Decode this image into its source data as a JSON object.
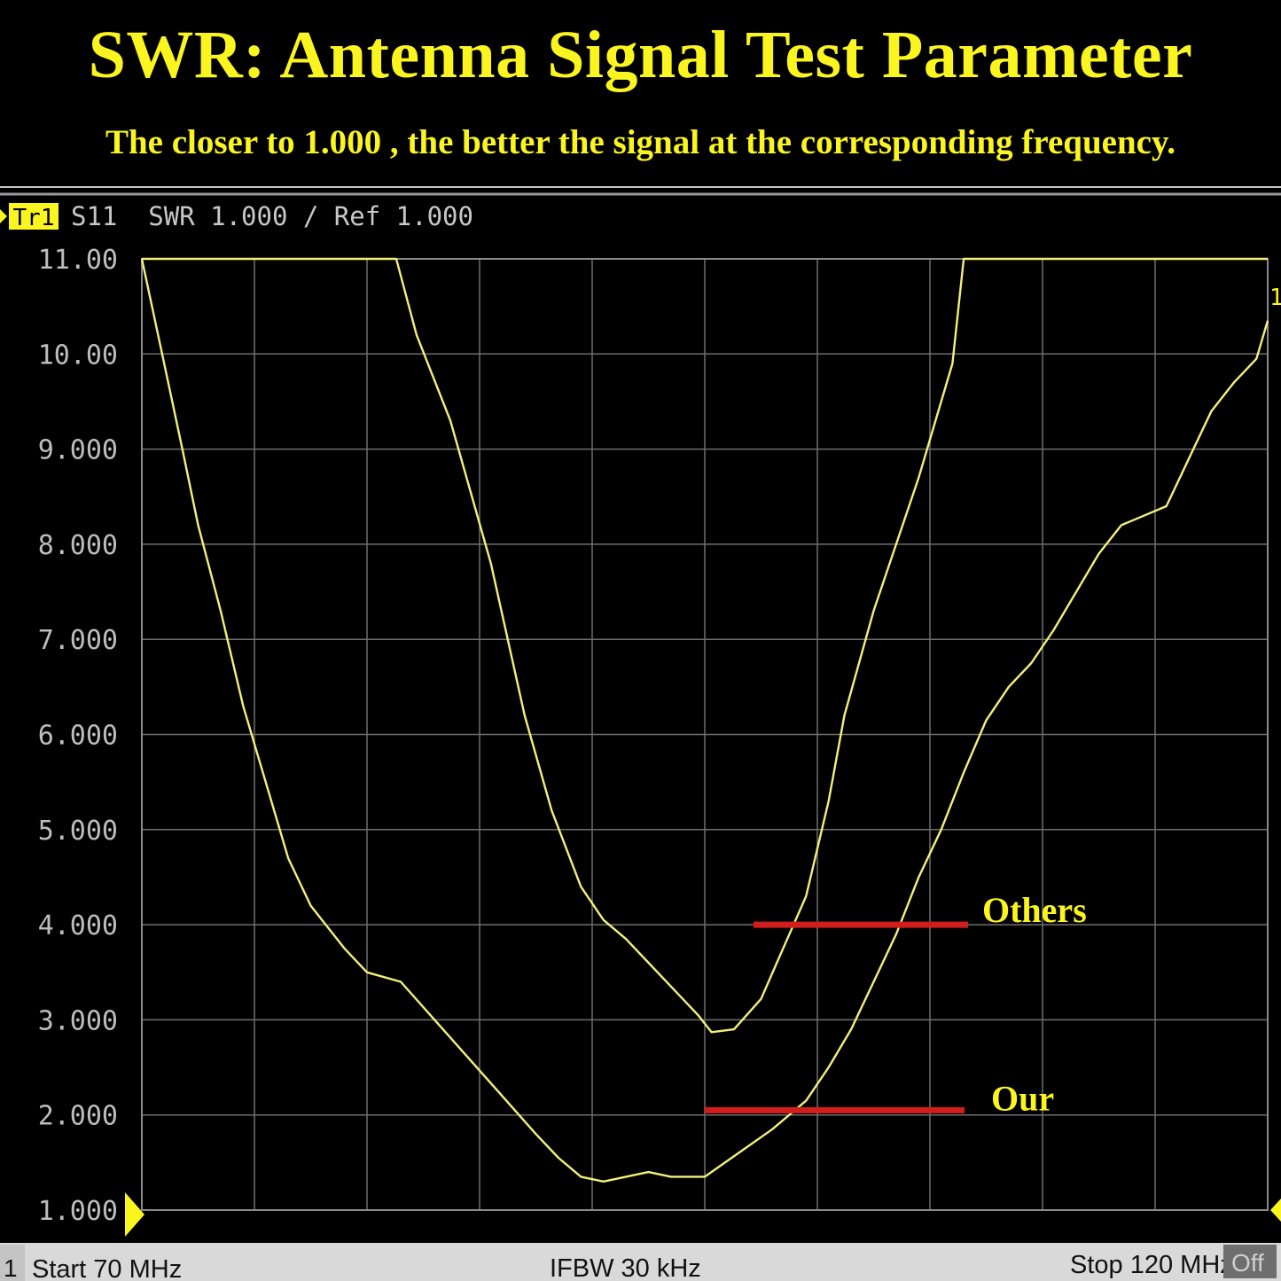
{
  "header": {
    "title": "SWR: Antenna Signal Test Parameter",
    "subtitle": "The closer to 1.000 , the better the signal at the corresponding frequency."
  },
  "trace_header": {
    "badge": "Tr1",
    "text": "S11  SWR 1.000 / Ref 1.000"
  },
  "status_bar": {
    "channel": "1",
    "start": "Start 70 MHz",
    "ifbw": "IFBW 30 kHz",
    "stop": "Stop 120 MHz",
    "off": "Off"
  },
  "annotations": {
    "others": "Others",
    "our": "Our",
    "right_marker": "1"
  },
  "colors": {
    "background": "#000000",
    "trace": "#f3f07a",
    "title": "#fbf51f",
    "marker_line": "#d21d1d",
    "grid": "#6f6f6f",
    "axis_text": "#bdbdbd"
  },
  "chart_data": {
    "type": "line",
    "title": "",
    "xlabel": "",
    "ylabel": "",
    "xlim": [
      70,
      120
    ],
    "ylim": [
      1,
      11
    ],
    "y_ticks": [
      "11.00",
      "10.00",
      "9.000",
      "8.000",
      "7.000",
      "6.000",
      "5.000",
      "4.000",
      "3.000",
      "2.000",
      "1.000"
    ],
    "grid": true,
    "series": [
      {
        "name": "Others",
        "x": [
          70,
          81.3,
          82.2,
          83.7,
          85.5,
          87,
          88.2,
          89.5,
          90.5,
          91.5,
          92.5,
          93.5,
          94.7,
          95.3,
          96.3,
          97.5,
          98.2,
          99.5,
          100.5,
          101.2,
          102.5,
          103.5,
          104.5,
          106,
          106.5,
          120
        ],
        "y": [
          11,
          11,
          10.2,
          9.3,
          7.8,
          6.2,
          5.2,
          4.4,
          4.05,
          3.85,
          3.6,
          3.35,
          3.05,
          2.87,
          2.9,
          3.22,
          3.6,
          4.3,
          5.3,
          6.2,
          7.3,
          8.0,
          8.7,
          9.9,
          11,
          11
        ]
      },
      {
        "name": "Our",
        "x": [
          70,
          70.9,
          71.8,
          72.5,
          73.5,
          74.5,
          75.5,
          76.5,
          77.5,
          79,
          80,
          81.5,
          83,
          84.5,
          86,
          87.5,
          88.5,
          89.5,
          90.5,
          92.5,
          93.5,
          95,
          96.5,
          98,
          99.5,
          100.5,
          101.5,
          102.5,
          103.5,
          104.5,
          105.5,
          106.5,
          107.5,
          108.5,
          109.5,
          110.5,
          111.5,
          112.5,
          113.5,
          114.5,
          115.5,
          116.5,
          117.5,
          118.5,
          119.5,
          120
        ],
        "y": [
          11,
          10,
          9,
          8.2,
          7.3,
          6.3,
          5.5,
          4.7,
          4.2,
          3.75,
          3.5,
          3.4,
          3.0,
          2.6,
          2.2,
          1.8,
          1.55,
          1.35,
          1.3,
          1.4,
          1.35,
          1.35,
          1.6,
          1.85,
          2.15,
          2.5,
          2.9,
          3.4,
          3.9,
          4.5,
          5.0,
          5.6,
          6.15,
          6.5,
          6.75,
          7.1,
          7.5,
          7.9,
          8.2,
          8.3,
          8.4,
          8.9,
          9.4,
          9.7,
          9.95,
          10.35
        ]
      }
    ]
  }
}
